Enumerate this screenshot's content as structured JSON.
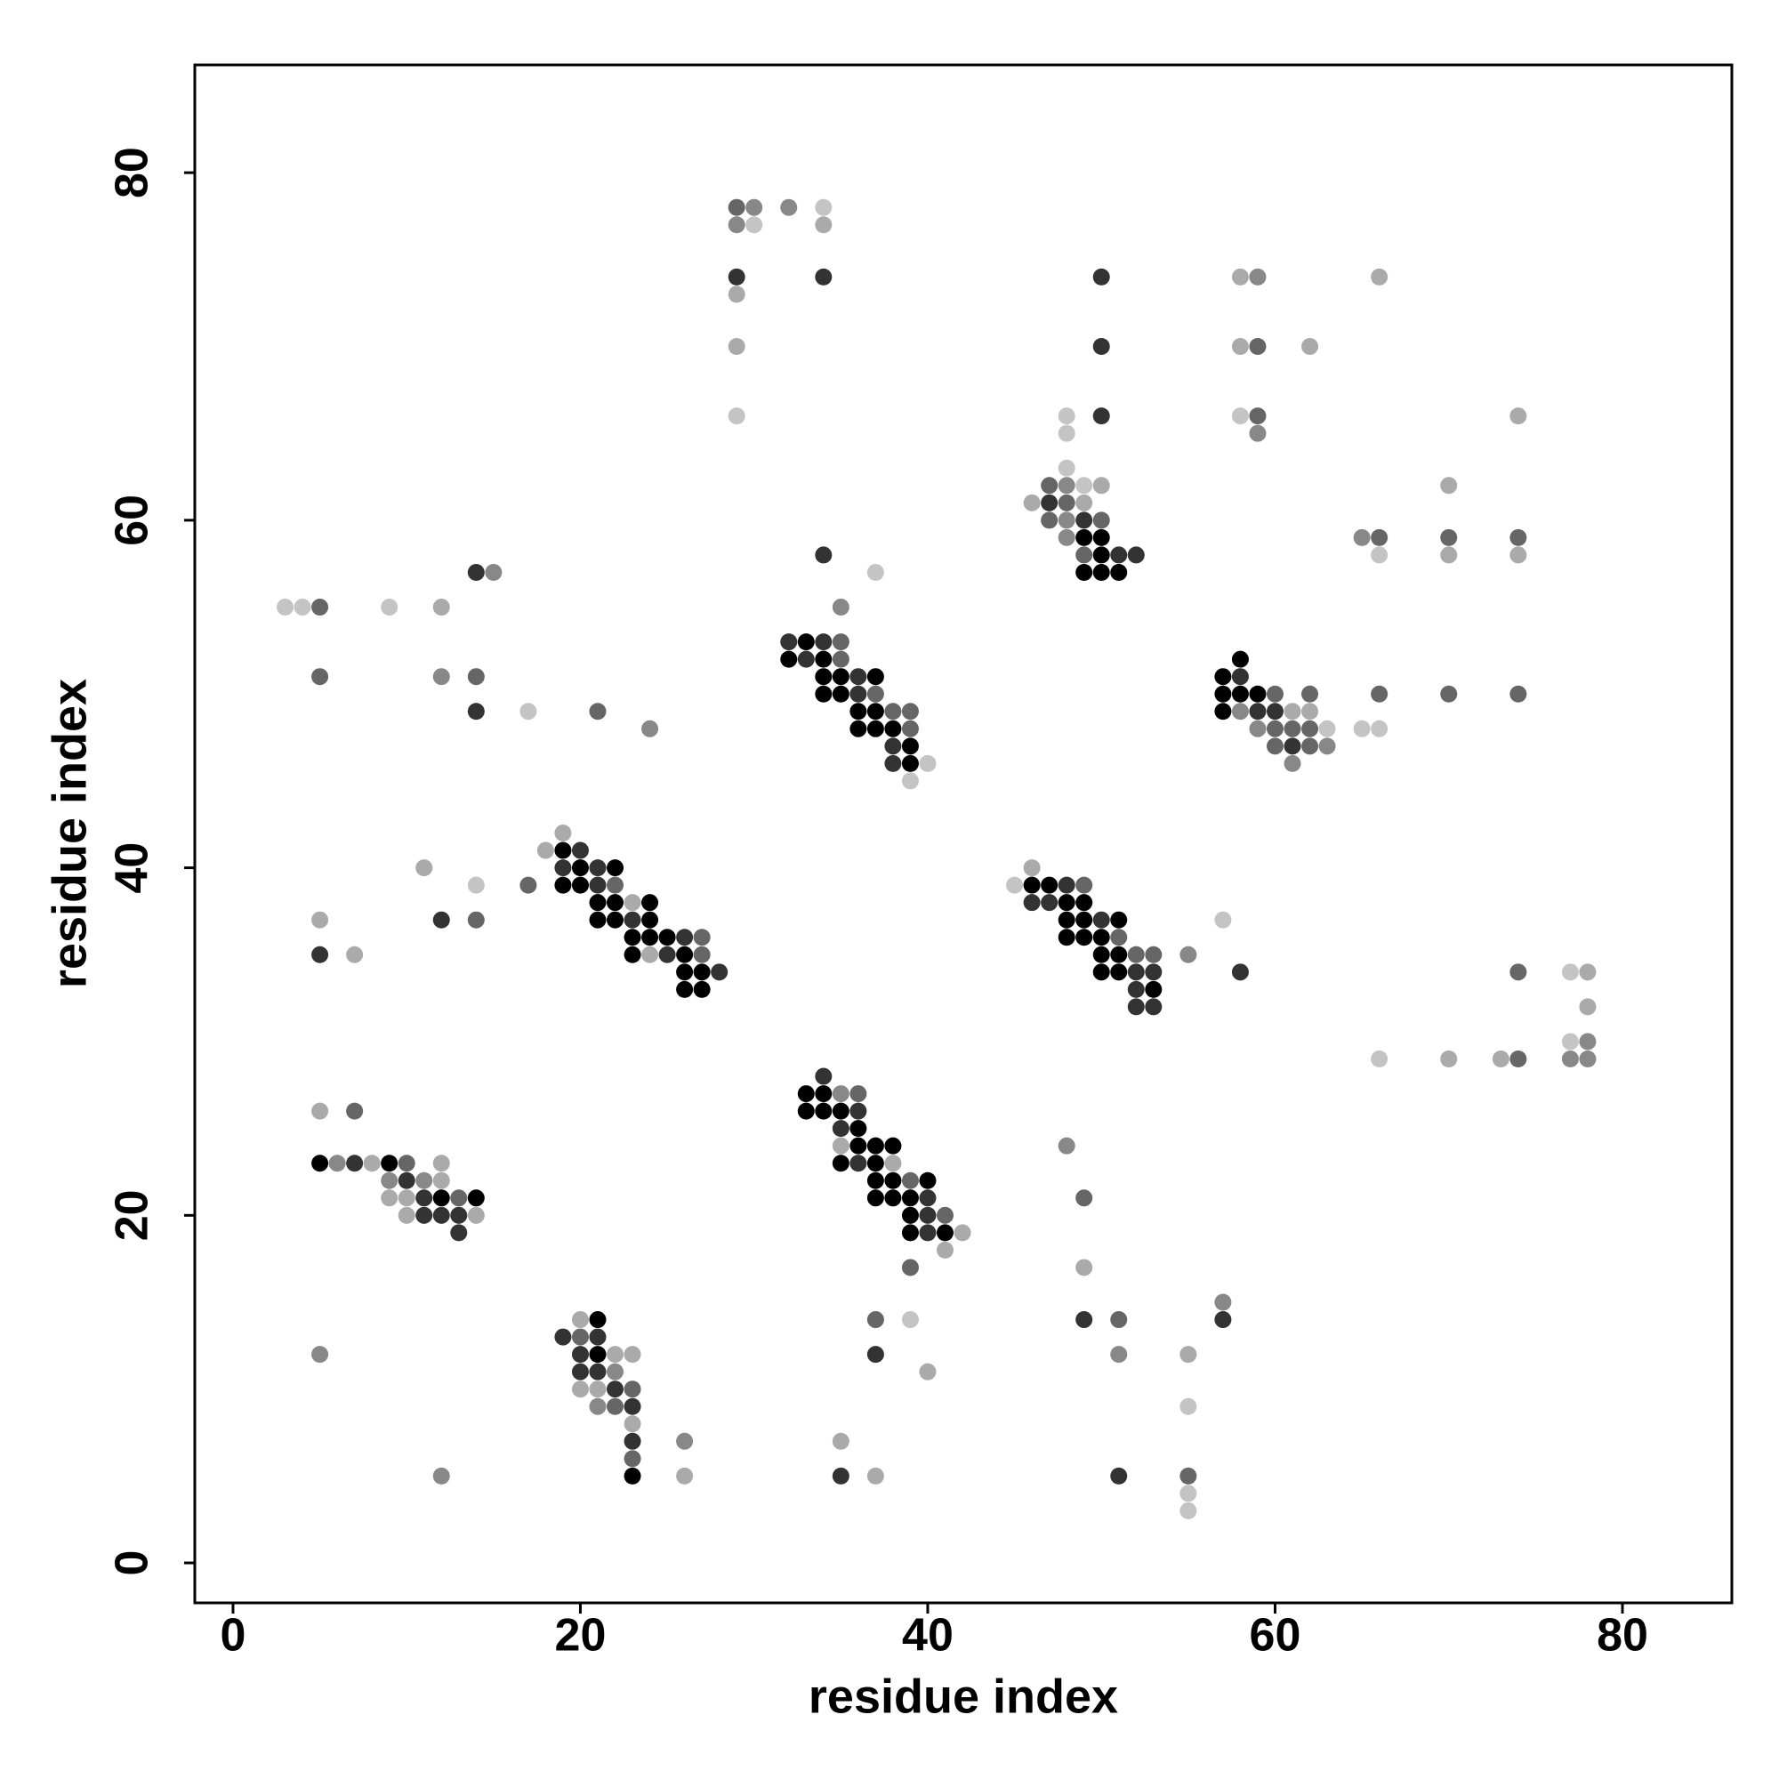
{
  "chart_data": {
    "type": "scatter",
    "xlabel": "residue index",
    "ylabel": "residue index",
    "xlim": [
      -2.2,
      86.3
    ],
    "ylim": [
      -2.3,
      86.2
    ],
    "xticks": [
      0,
      20,
      40,
      60,
      80
    ],
    "yticks": [
      0,
      20,
      40,
      60,
      80
    ],
    "series": [
      {
        "color": "#000000",
        "x": [
          33,
          32,
          34,
          34,
          35,
          37,
          34,
          35,
          36,
          37,
          36,
          37,
          38,
          39,
          39,
          49,
          50,
          50,
          49,
          50,
          51,
          58,
          57,
          57,
          58,
          59,
          57,
          19,
          20,
          22,
          19,
          20,
          21,
          22,
          24,
          21,
          22,
          24,
          23,
          24,
          25,
          23,
          26,
          26,
          27,
          26,
          27,
          46,
          47,
          48,
          49,
          48,
          49,
          51,
          48,
          49,
          50,
          50,
          51,
          50,
          51,
          53,
          33,
          34,
          33,
          34,
          35,
          36,
          36,
          37,
          38,
          35,
          37,
          37,
          38,
          40,
          37,
          38,
          39,
          39,
          39,
          41,
          5,
          9,
          12,
          14,
          21,
          21,
          23
        ],
        "values": [
          53,
          52,
          52,
          51,
          51,
          51,
          50,
          50,
          49,
          49,
          48,
          48,
          48,
          47,
          46,
          59,
          59,
          58,
          57,
          57,
          57,
          52,
          51,
          50,
          50,
          50,
          49,
          41,
          40,
          40,
          39,
          39,
          38,
          38,
          38,
          37,
          37,
          37,
          36,
          36,
          36,
          35,
          35,
          34,
          34,
          33,
          33,
          39,
          39,
          38,
          38,
          37,
          37,
          37,
          36,
          36,
          36,
          35,
          35,
          34,
          34,
          33,
          27,
          27,
          26,
          26,
          26,
          25,
          24,
          24,
          24,
          23,
          23,
          22,
          22,
          22,
          21,
          21,
          21,
          20,
          19,
          19,
          23,
          23,
          21,
          21,
          14,
          12,
          5
        ]
      },
      {
        "color": "#333333",
        "x": [
          29,
          34,
          50,
          50,
          50,
          47,
          49,
          51,
          52,
          34,
          14,
          14,
          32,
          34,
          33,
          36,
          36,
          38,
          38,
          58,
          59,
          60,
          61,
          20,
          19,
          21,
          21,
          23,
          26,
          25,
          28,
          12,
          5,
          48,
          46,
          47,
          50,
          52,
          53,
          52,
          52,
          53,
          58,
          34,
          36,
          35,
          36,
          40,
          40,
          40,
          7,
          10,
          11,
          11,
          12,
          13,
          13,
          49,
          57,
          19,
          21,
          20,
          37,
          20,
          21,
          22,
          23,
          23,
          35,
          51
        ],
        "values": [
          74,
          74,
          74,
          70,
          66,
          61,
          60,
          58,
          58,
          58,
          57,
          49,
          53,
          53,
          52,
          51,
          50,
          47,
          46,
          51,
          49,
          49,
          47,
          41,
          40,
          40,
          39,
          37,
          36,
          35,
          34,
          37,
          35,
          39,
          38,
          38,
          37,
          34,
          34,
          33,
          32,
          32,
          34,
          28,
          26,
          25,
          23,
          21,
          20,
          19,
          23,
          22,
          21,
          20,
          20,
          20,
          19,
          14,
          14,
          13,
          13,
          12,
          12,
          11,
          11,
          10,
          9,
          7,
          5,
          5
        ]
      },
      {
        "color": "#666666",
        "x": [
          29,
          59,
          59,
          48,
          47,
          47,
          50,
          49,
          66,
          70,
          74,
          5,
          5,
          14,
          21,
          35,
          35,
          37,
          38,
          39,
          39,
          60,
          62,
          60,
          61,
          62,
          60,
          62,
          66,
          70,
          74,
          17,
          22,
          27,
          27,
          14,
          49,
          51,
          52,
          53,
          74,
          74,
          36,
          39,
          41,
          39,
          7,
          10,
          13,
          49,
          37,
          51,
          20,
          23,
          22,
          23,
          55
        ],
        "values": [
          78,
          70,
          66,
          61,
          62,
          60,
          60,
          58,
          59,
          59,
          59,
          55,
          51,
          51,
          49,
          53,
          52,
          50,
          49,
          49,
          48,
          50,
          50,
          48,
          48,
          48,
          47,
          47,
          50,
          50,
          50,
          39,
          39,
          36,
          35,
          37,
          39,
          36,
          35,
          35,
          34,
          29,
          27,
          22,
          20,
          17,
          26,
          23,
          21,
          21,
          14,
          14,
          13,
          10,
          9,
          6,
          5
        ]
      },
      {
        "color": "#888888",
        "x": [
          30,
          32,
          29,
          59,
          59,
          48,
          48,
          48,
          65,
          15,
          35,
          12,
          24,
          58,
          59,
          63,
          61,
          55,
          78,
          77,
          78,
          35,
          48,
          6,
          9,
          11,
          57,
          5,
          51,
          22,
          21,
          26,
          12
        ],
        "values": [
          78,
          78,
          77,
          74,
          65,
          62,
          60,
          59,
          59,
          57,
          55,
          51,
          48,
          49,
          48,
          47,
          46,
          35,
          30,
          29,
          29,
          27,
          24,
          23,
          22,
          22,
          15,
          12,
          12,
          11,
          9,
          7,
          5
        ]
      },
      {
        "color": "#aaaaaa",
        "x": [
          34,
          29,
          29,
          58,
          66,
          58,
          62,
          74,
          50,
          46,
          49,
          70,
          70,
          74,
          12,
          61,
          62,
          19,
          18,
          23,
          24,
          11,
          5,
          7,
          46,
          78,
          78,
          70,
          73,
          35,
          38,
          42,
          41,
          5,
          8,
          12,
          12,
          9,
          10,
          10,
          14,
          49,
          20,
          22,
          23,
          55,
          40,
          20,
          21,
          23,
          35,
          26,
          37
        ],
        "values": [
          77,
          73,
          70,
          74,
          74,
          70,
          70,
          66,
          62,
          61,
          61,
          62,
          58,
          58,
          55,
          49,
          49,
          42,
          41,
          38,
          35,
          40,
          37,
          35,
          40,
          34,
          32,
          29,
          29,
          24,
          23,
          19,
          18,
          26,
          23,
          23,
          22,
          21,
          21,
          20,
          20,
          17,
          14,
          12,
          12,
          12,
          11,
          10,
          10,
          8,
          7,
          5,
          5
        ]
      },
      {
        "color": "#c4c4c4",
        "x": [
          34,
          30,
          29,
          58,
          48,
          48,
          48,
          49,
          66,
          37,
          3,
          4,
          9,
          17,
          40,
          39,
          63,
          65,
          66,
          14,
          45,
          57,
          77,
          77,
          66,
          39,
          55,
          55,
          55
        ],
        "values": [
          78,
          77,
          66,
          66,
          66,
          65,
          63,
          62,
          58,
          57,
          55,
          55,
          55,
          49,
          46,
          45,
          48,
          48,
          48,
          39,
          39,
          37,
          34,
          30,
          29,
          14,
          9,
          4,
          3
        ]
      }
    ]
  }
}
